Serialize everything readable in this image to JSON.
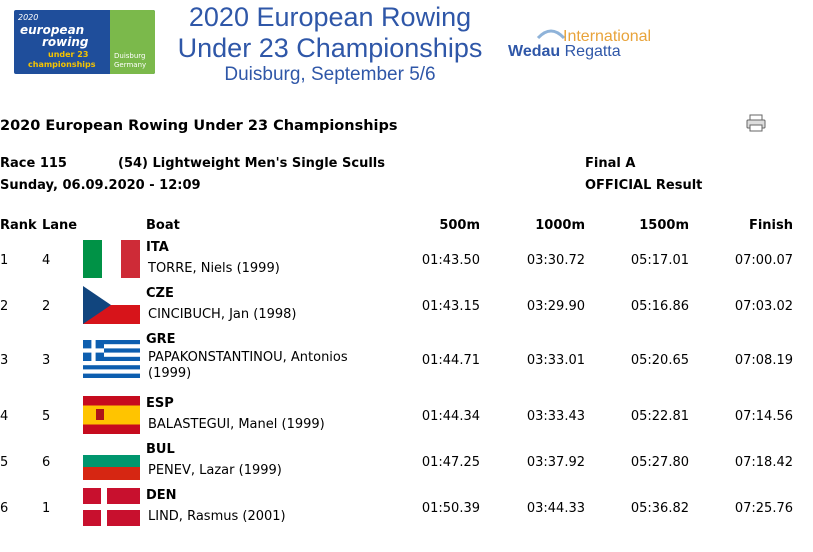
{
  "header": {
    "logo": {
      "year": "2020",
      "line1": "european",
      "line2": "rowing",
      "line3": "under 23",
      "line4": "championships",
      "city": "Duisburg",
      "country": "Germany"
    },
    "title": [
      "2020 European Rowing",
      "Under 23 Championships",
      "Duisburg, September 5/6"
    ],
    "sponsor": {
      "top": "International",
      "bold": "Wedau",
      "rest": "Regatta"
    }
  },
  "page_title": "2020 European Rowing Under 23 Championships",
  "race": {
    "number": "Race 115",
    "event": "(54) Lightweight Men's Single Sculls",
    "phase": "Final A",
    "date": "Sunday, 06.09.2020 - 12:09",
    "status": "OFFICIAL Result"
  },
  "table": {
    "columns": [
      "Rank",
      "Lane",
      "Boat",
      "500m",
      "1000m",
      "1500m",
      "Finish"
    ],
    "rows": [
      [
        "1",
        "4",
        "ITA",
        "TORRE, Niels (1999)",
        "01:43.50",
        "03:30.72",
        "05:17.01",
        "07:00.07"
      ],
      [
        "2",
        "2",
        "CZE",
        "CINCIBUCH, Jan (1998)",
        "01:43.15",
        "03:29.90",
        "05:16.86",
        "07:03.02"
      ],
      [
        "3",
        "3",
        "GRE",
        "PAPAKONSTANTINOU, Antonios (1999)",
        "01:44.71",
        "03:33.01",
        "05:20.65",
        "07:08.19"
      ],
      [
        "4",
        "5",
        "ESP",
        "BALASTEGUI, Manel (1999)",
        "01:44.34",
        "03:33.43",
        "05:22.81",
        "07:14.56"
      ],
      [
        "5",
        "6",
        "BUL",
        "PENEV, Lazar (1999)",
        "01:47.25",
        "03:37.92",
        "05:27.80",
        "07:18.42"
      ],
      [
        "6",
        "1",
        "DEN",
        "LIND, Rasmus (2001)",
        "01:50.39",
        "03:44.33",
        "05:36.82",
        "07:25.76"
      ]
    ]
  }
}
